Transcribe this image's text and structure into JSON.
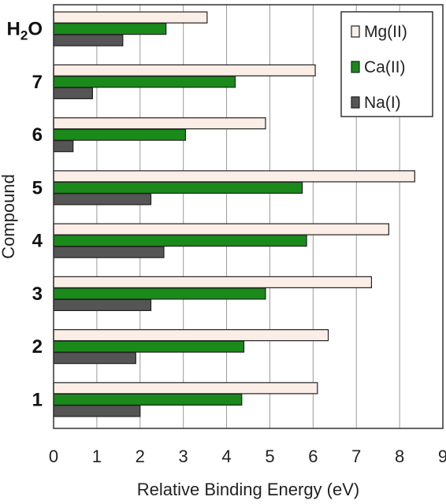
{
  "chart_data": {
    "type": "bar",
    "orientation": "horizontal",
    "xlabel": "Relative Binding Energy (eV)",
    "ylabel": "Compound",
    "xlim": [
      0,
      9
    ],
    "xticks": [
      "0",
      "1",
      "2",
      "3",
      "4",
      "5",
      "6",
      "7",
      "8",
      "9"
    ],
    "grid": "vertical",
    "legend_position": "top-right",
    "categories": [
      "H2O",
      "7",
      "6",
      "5",
      "4",
      "3",
      "2",
      "1"
    ],
    "series": [
      {
        "name": "Mg(II)",
        "color": "#fbeee6",
        "values": [
          3.55,
          6.05,
          4.9,
          8.35,
          7.75,
          7.35,
          6.35,
          6.1
        ]
      },
      {
        "name": "Ca(II)",
        "color": "#1a8a1a",
        "values": [
          2.6,
          4.2,
          3.05,
          5.75,
          5.85,
          4.9,
          4.4,
          4.35
        ]
      },
      {
        "name": "Na(I)",
        "color": "#555555",
        "values": [
          1.6,
          0.9,
          0.45,
          2.25,
          2.55,
          2.25,
          1.9,
          2.0
        ]
      }
    ]
  }
}
